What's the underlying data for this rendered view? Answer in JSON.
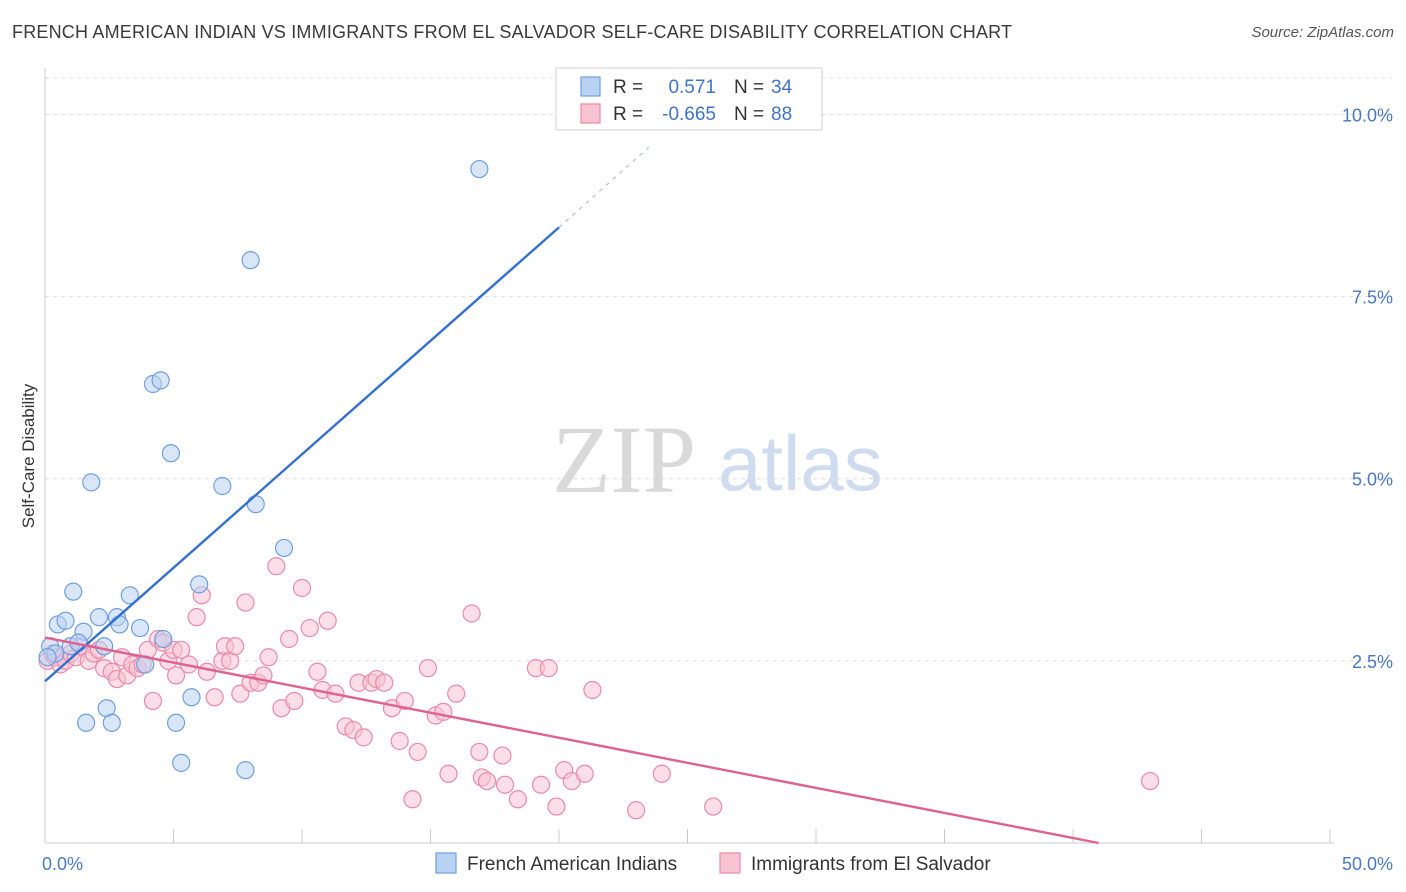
{
  "header": {
    "title": "FRENCH AMERICAN INDIAN VS IMMIGRANTS FROM EL SALVADOR SELF-CARE DISABILITY CORRELATION CHART",
    "source": "Source: ZipAtlas.com"
  },
  "watermark": {
    "zip": "ZIP",
    "atlas": "atlas"
  },
  "chart_data": {
    "type": "scatter",
    "title": "FRENCH AMERICAN INDIAN VS IMMIGRANTS FROM EL SALVADOR SELF-CARE DISABILITY CORRELATION CHART",
    "xlabel": "",
    "ylabel": "Self-Care Disability",
    "xlim": [
      0,
      50
    ],
    "ylim": [
      0,
      10.5
    ],
    "x_tick_labels": [
      {
        "value": 0,
        "label": "0.0%"
      },
      {
        "value": 50,
        "label": "50.0%"
      }
    ],
    "y_tick_labels": [
      {
        "value": 2.5,
        "label": "2.5%"
      },
      {
        "value": 5.0,
        "label": "5.0%"
      },
      {
        "value": 7.5,
        "label": "7.5%"
      },
      {
        "value": 10.0,
        "label": "10.0%"
      }
    ],
    "grid": true,
    "legend_position": "bottom-center",
    "stats": [
      {
        "r_label": "R =",
        "r_value": "0.571",
        "n_label": "N =",
        "n_value": "34"
      },
      {
        "r_label": "R =",
        "r_value": "-0.665",
        "n_label": "N =",
        "n_value": "88"
      }
    ],
    "series": [
      {
        "name": "French American Indians",
        "color": "#6f9fe0",
        "fill": "#b9d1f3",
        "trend": {
          "x0": 0,
          "y0": 2.22,
          "x1": 20.0,
          "y1": 8.45,
          "dash_to_x": 23.5,
          "dash_to_y": 9.55,
          "color": "#3370d0"
        },
        "points": [
          [
            0.2,
            2.7
          ],
          [
            0.4,
            2.6
          ],
          [
            0.5,
            3.0
          ],
          [
            0.8,
            3.05
          ],
          [
            1.0,
            2.7
          ],
          [
            1.1,
            3.45
          ],
          [
            1.5,
            2.9
          ],
          [
            1.6,
            1.65
          ],
          [
            1.8,
            4.95
          ],
          [
            2.1,
            3.1
          ],
          [
            2.3,
            2.7
          ],
          [
            2.4,
            1.85
          ],
          [
            2.6,
            1.65
          ],
          [
            2.8,
            3.1
          ],
          [
            2.9,
            3.0
          ],
          [
            3.3,
            3.4
          ],
          [
            3.7,
            2.95
          ],
          [
            3.9,
            2.45
          ],
          [
            4.2,
            6.3
          ],
          [
            4.5,
            6.35
          ],
          [
            4.6,
            2.8
          ],
          [
            4.9,
            5.35
          ],
          [
            5.1,
            1.65
          ],
          [
            5.3,
            1.1
          ],
          [
            5.7,
            2.0
          ],
          [
            6.0,
            3.55
          ],
          [
            6.9,
            4.9
          ],
          [
            7.8,
            1.0
          ],
          [
            8.0,
            8.0
          ],
          [
            8.2,
            4.65
          ],
          [
            9.3,
            4.05
          ],
          [
            16.9,
            9.25
          ],
          [
            0.1,
            2.55
          ],
          [
            1.3,
            2.75
          ]
        ]
      },
      {
        "name": "Immigrants from El Salvador",
        "color": "#ea8aa8",
        "fill": "#f7c3d3",
        "trend": {
          "x0": 0,
          "y0": 2.82,
          "x1": 41.0,
          "y1": 0.0,
          "color": "#e0618e"
        },
        "points": [
          [
            0.1,
            2.5
          ],
          [
            0.3,
            2.6
          ],
          [
            0.4,
            2.55
          ],
          [
            0.6,
            2.45
          ],
          [
            0.8,
            2.5
          ],
          [
            1.0,
            2.6
          ],
          [
            1.2,
            2.55
          ],
          [
            1.4,
            2.7
          ],
          [
            1.7,
            2.5
          ],
          [
            1.9,
            2.6
          ],
          [
            2.1,
            2.65
          ],
          [
            2.3,
            2.4
          ],
          [
            2.6,
            2.35
          ],
          [
            2.8,
            2.25
          ],
          [
            3.0,
            2.55
          ],
          [
            3.2,
            2.3
          ],
          [
            3.4,
            2.45
          ],
          [
            3.6,
            2.4
          ],
          [
            3.8,
            2.45
          ],
          [
            4.0,
            2.65
          ],
          [
            4.2,
            1.95
          ],
          [
            4.4,
            2.8
          ],
          [
            4.6,
            2.75
          ],
          [
            4.8,
            2.5
          ],
          [
            5.0,
            2.65
          ],
          [
            5.1,
            2.3
          ],
          [
            5.3,
            2.65
          ],
          [
            5.6,
            2.45
          ],
          [
            5.9,
            3.1
          ],
          [
            6.1,
            3.4
          ],
          [
            6.3,
            2.35
          ],
          [
            6.6,
            2.0
          ],
          [
            6.9,
            2.5
          ],
          [
            7.0,
            2.7
          ],
          [
            7.2,
            2.5
          ],
          [
            7.4,
            2.7
          ],
          [
            7.6,
            2.05
          ],
          [
            7.8,
            3.3
          ],
          [
            8.0,
            2.2
          ],
          [
            8.3,
            2.2
          ],
          [
            8.5,
            2.3
          ],
          [
            8.7,
            2.55
          ],
          [
            9.0,
            3.8
          ],
          [
            9.2,
            1.85
          ],
          [
            9.5,
            2.8
          ],
          [
            9.7,
            1.95
          ],
          [
            10.0,
            3.5
          ],
          [
            10.3,
            2.95
          ],
          [
            10.6,
            2.35
          ],
          [
            10.8,
            2.1
          ],
          [
            11.0,
            3.05
          ],
          [
            11.3,
            2.05
          ],
          [
            11.7,
            1.6
          ],
          [
            12.0,
            1.55
          ],
          [
            12.2,
            2.2
          ],
          [
            12.4,
            1.45
          ],
          [
            12.7,
            2.2
          ],
          [
            12.9,
            2.25
          ],
          [
            13.2,
            2.2
          ],
          [
            13.5,
            1.85
          ],
          [
            13.8,
            1.4
          ],
          [
            14.0,
            1.95
          ],
          [
            14.3,
            0.6
          ],
          [
            14.5,
            1.25
          ],
          [
            14.9,
            2.4
          ],
          [
            15.2,
            1.75
          ],
          [
            15.5,
            1.8
          ],
          [
            15.7,
            0.95
          ],
          [
            16.0,
            2.05
          ],
          [
            16.6,
            3.15
          ],
          [
            16.9,
            1.25
          ],
          [
            17.0,
            0.9
          ],
          [
            17.2,
            0.85
          ],
          [
            17.8,
            1.2
          ],
          [
            17.9,
            0.8
          ],
          [
            18.4,
            0.6
          ],
          [
            19.1,
            2.4
          ],
          [
            19.6,
            2.4
          ],
          [
            19.3,
            0.8
          ],
          [
            19.9,
            0.5
          ],
          [
            20.2,
            1.0
          ],
          [
            20.5,
            0.85
          ],
          [
            21.0,
            0.95
          ],
          [
            21.3,
            2.1
          ],
          [
            23.0,
            0.45
          ],
          [
            24.0,
            0.95
          ],
          [
            26.0,
            0.5
          ],
          [
            43.0,
            0.85
          ]
        ]
      }
    ]
  }
}
